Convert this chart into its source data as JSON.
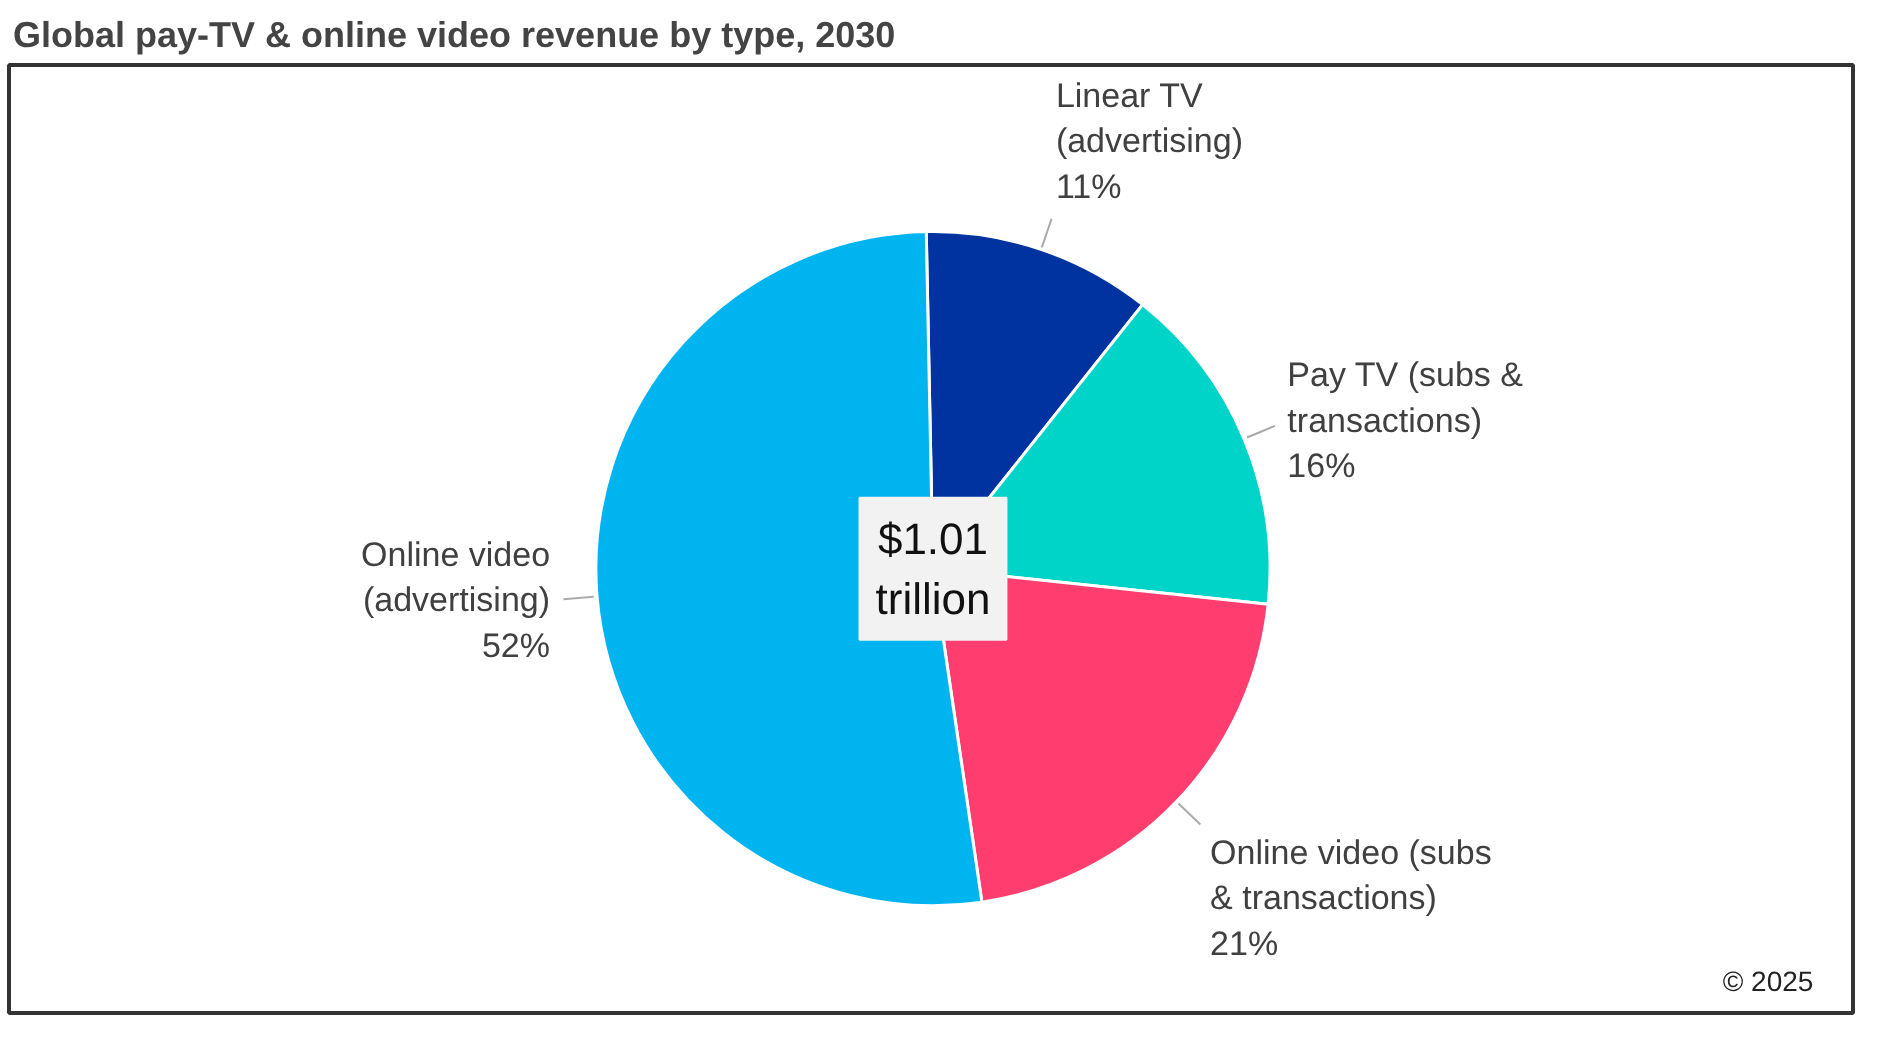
{
  "chart_data": {
    "type": "pie",
    "title": "Global pay-TV & online video revenue by type, 2030",
    "categories": [
      "Linear TV\n(advertising)",
      "Pay TV (subs &\ntransactions)",
      "Online video (subs\n& transactions)",
      "Online video\n(advertising)"
    ],
    "values": [
      11,
      16,
      21,
      52
    ],
    "colors": [
      "#0033a0",
      "#00d4c8",
      "#ff3d6e",
      "#00b4f0"
    ],
    "value_labels": [
      "11%",
      "16%",
      "21%",
      "52%"
    ],
    "annotations": [
      "$1.01\ntrillion",
      "© 2025"
    ]
  }
}
